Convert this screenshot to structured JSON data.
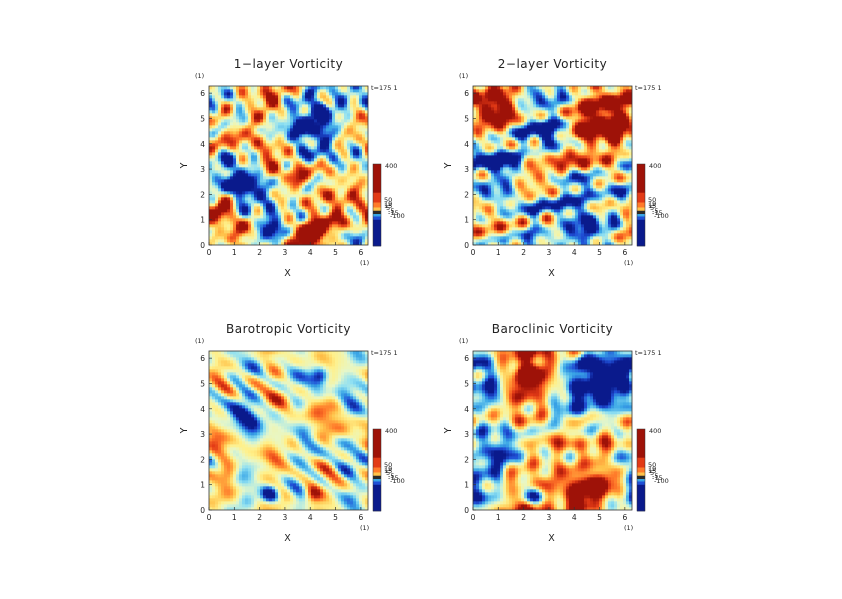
{
  "page": {
    "background": "#ffffff"
  },
  "colorscale": {
    "stops": [
      "#0a1a8c",
      "#1f4fd6",
      "#3aa6e6",
      "#8fe0f2",
      "#e6f7c9",
      "#fff08a",
      "#ffc24a",
      "#ff7a2a",
      "#e23a16",
      "#9e1208"
    ],
    "labels": [
      "400",
      "50",
      "19",
      "15",
      "5",
      "-5",
      "-15",
      "-100"
    ],
    "bands": [
      {
        "color": "#9e1208",
        "value": 400
      },
      {
        "color": "#e23a16",
        "value": 50
      },
      {
        "color": "#ff7a2a",
        "value": 19
      },
      {
        "color": "#ffc24a",
        "value": 15
      },
      {
        "color": "#2a2a2a",
        "value": 5
      },
      {
        "color": "#3aa6e6",
        "value": -5
      },
      {
        "color": "#1f4fd6",
        "value": -15
      },
      {
        "color": "#0a1a8c",
        "value": -100
      }
    ]
  },
  "chart_data": [
    {
      "type": "heatmap",
      "title": "1−layer Vorticity",
      "xlabel": "X",
      "ylabel": "Y",
      "x_unit": "(1)",
      "y_unit": "(1)",
      "xlim": [
        0,
        6.283
      ],
      "ylim": [
        0,
        6.283
      ],
      "xticks": [
        "0",
        "1",
        "2",
        "3",
        "4",
        "5",
        "6"
      ],
      "yticks": [
        "0",
        "1",
        "2",
        "3",
        "4",
        "5",
        "6"
      ],
      "time_label": "t=175  1",
      "colorbar": [
        "400",
        "50",
        "19",
        "15",
        "5",
        "-5",
        "-15",
        "-100"
      ],
      "field": {
        "seed": 11,
        "bias": 0.1,
        "features": [
          {
            "x": 4.3,
            "y": 5.2,
            "s": 0.8,
            "a": -3.0
          },
          {
            "x": 1.3,
            "y": 2.5,
            "s": 0.7,
            "a": -2.0
          },
          {
            "x": 2.4,
            "y": 0.6,
            "s": 0.35,
            "a": -3.5
          },
          {
            "x": 4.1,
            "y": 0.5,
            "s": 0.4,
            "a": 4.0
          },
          {
            "x": 4.9,
            "y": 1.0,
            "s": 0.35,
            "a": 3.0
          },
          {
            "x": 2.4,
            "y": 5.5,
            "s": 0.5,
            "a": 1.8
          },
          {
            "x": 0.5,
            "y": 1.3,
            "s": 0.3,
            "a": 1.5
          },
          {
            "x": 4.5,
            "y": 5.3,
            "s": 0.2,
            "a": -2.5
          }
        ]
      }
    },
    {
      "type": "heatmap",
      "title": "2−layer Vorticity",
      "xlabel": "X",
      "ylabel": "Y",
      "x_unit": "(1)",
      "y_unit": "(1)",
      "xlim": [
        0,
        6.283
      ],
      "ylim": [
        0,
        6.283
      ],
      "xticks": [
        "0",
        "1",
        "2",
        "3",
        "4",
        "5",
        "6"
      ],
      "yticks": [
        "0",
        "1",
        "2",
        "3",
        "4",
        "5",
        "6"
      ],
      "time_label": "t=175  1",
      "colorbar": [
        "400",
        "50",
        "19",
        "15",
        "5",
        "-5",
        "-15",
        "-100"
      ],
      "field": {
        "seed": 23,
        "bias": 0.0,
        "features": [
          {
            "x": 0.9,
            "y": 5.4,
            "s": 0.7,
            "a": 3.0
          },
          {
            "x": 5.2,
            "y": 4.9,
            "s": 0.9,
            "a": 3.0
          },
          {
            "x": 2.9,
            "y": 4.7,
            "s": 0.6,
            "a": -2.5
          },
          {
            "x": 1.0,
            "y": 3.0,
            "s": 0.6,
            "a": -2.5
          },
          {
            "x": 3.6,
            "y": 2.0,
            "s": 0.6,
            "a": -1.8
          },
          {
            "x": 2.0,
            "y": 1.0,
            "s": 0.5,
            "a": -1.5
          },
          {
            "x": 4.6,
            "y": 0.5,
            "s": 0.5,
            "a": -2.0
          },
          {
            "x": 3.0,
            "y": 2.6,
            "s": 0.4,
            "a": 1.5
          }
        ]
      }
    },
    {
      "type": "heatmap",
      "title": "Barotropic Vorticity",
      "xlabel": "X",
      "ylabel": "Y",
      "x_unit": "(1)",
      "y_unit": "(1)",
      "xlim": [
        0,
        6.283
      ],
      "ylim": [
        0,
        6.283
      ],
      "xticks": [
        "0",
        "1",
        "2",
        "3",
        "4",
        "5",
        "6"
      ],
      "yticks": [
        "0",
        "1",
        "2",
        "3",
        "4",
        "5",
        "6"
      ],
      "time_label": "t=175  1",
      "colorbar": [
        "400",
        "50",
        "19",
        "15",
        "5",
        "-5",
        "-15",
        "-100"
      ],
      "field": {
        "seed": 37,
        "bias": -0.05,
        "amp": 0.8,
        "features": [
          {
            "x": 4.4,
            "y": 5.3,
            "s": 0.25,
            "a": -3.5
          },
          {
            "x": 2.4,
            "y": 0.6,
            "s": 0.25,
            "a": -4.0
          },
          {
            "x": 4.1,
            "y": 0.6,
            "s": 0.25,
            "a": 2.8
          },
          {
            "x": 3.3,
            "y": 2.8,
            "s": 0.3,
            "a": 2.0
          },
          {
            "x": 1.4,
            "y": 3.8,
            "s": 0.6,
            "a": -1.0
          },
          {
            "x": 0.8,
            "y": 1.4,
            "s": 0.25,
            "a": 1.8
          }
        ]
      }
    },
    {
      "type": "heatmap",
      "title": "Baroclinic Vorticity",
      "xlabel": "X",
      "ylabel": "Y",
      "x_unit": "(1)",
      "y_unit": "(1)",
      "xlim": [
        0,
        6.283
      ],
      "ylim": [
        0,
        6.283
      ],
      "xticks": [
        "0",
        "1",
        "2",
        "3",
        "4",
        "5",
        "6"
      ],
      "yticks": [
        "0",
        "1",
        "2",
        "3",
        "4",
        "5",
        "6"
      ],
      "time_label": "t=175  1",
      "colorbar": [
        "400",
        "50",
        "19",
        "15",
        "5",
        "-5",
        "-15",
        "-100"
      ],
      "field": {
        "seed": 53,
        "bias": 0.08,
        "features": [
          {
            "x": 5.1,
            "y": 5.0,
            "s": 0.8,
            "a": -3.0
          },
          {
            "x": 0.7,
            "y": 4.9,
            "s": 0.6,
            "a": -2.2
          },
          {
            "x": 2.4,
            "y": 5.2,
            "s": 0.5,
            "a": 2.0
          },
          {
            "x": 1.2,
            "y": 2.5,
            "s": 0.6,
            "a": -1.8
          },
          {
            "x": 2.4,
            "y": 0.6,
            "s": 0.3,
            "a": -3.5
          },
          {
            "x": 4.3,
            "y": 0.6,
            "s": 0.5,
            "a": 3.2
          },
          {
            "x": 5.3,
            "y": 0.9,
            "s": 0.4,
            "a": 2.8
          },
          {
            "x": 3.5,
            "y": 2.9,
            "s": 0.35,
            "a": 1.6
          }
        ]
      }
    }
  ]
}
